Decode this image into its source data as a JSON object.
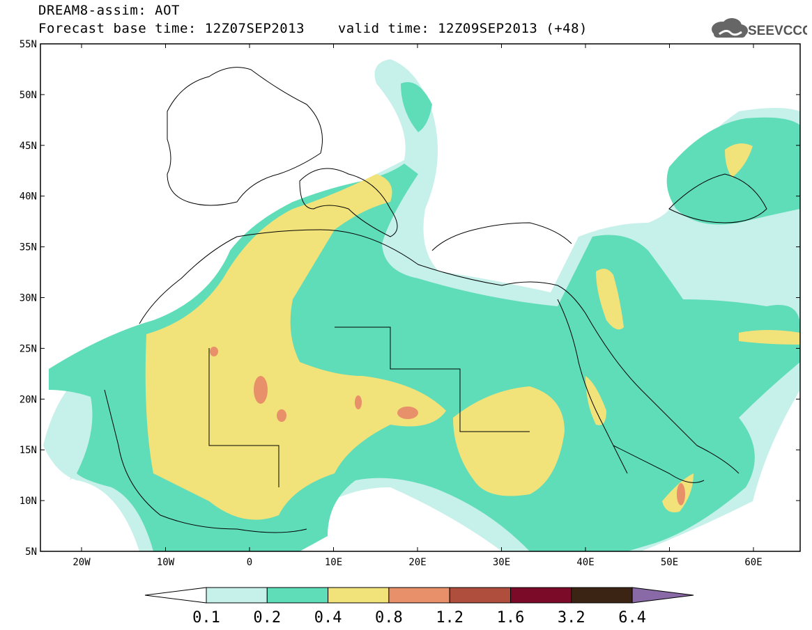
{
  "header": {
    "title_line1": "DREAM8-assim: AOT",
    "forecast_base": "Forecast base time: 12Z07SEP2013",
    "valid_time": "valid time: 12Z09SEP2013 (+48)"
  },
  "logo": {
    "text": "SEEVCCC",
    "icon": "cloud-logo-icon"
  },
  "map": {
    "lon_ticks": [
      "20W",
      "10W",
      "0",
      "10E",
      "20E",
      "30E",
      "40E",
      "50E",
      "60E"
    ],
    "lat_ticks": [
      "55N",
      "50N",
      "45N",
      "40N",
      "35N",
      "30N",
      "25N",
      "20N",
      "15N",
      "10N",
      "5N"
    ]
  },
  "legend": {
    "labels": [
      "0.1",
      "0.2",
      "0.4",
      "0.8",
      "1.2",
      "1.6",
      "3.2",
      "6.4"
    ],
    "colors": [
      "#c6f0ea",
      "#5fdcb8",
      "#f2e27a",
      "#e8906a",
      "#b04e3e",
      "#7a0a28",
      "#3c2414",
      "#8a6aa6"
    ]
  },
  "colors": {
    "aot_0_1": "#c6f0ea",
    "aot_0_2": "#5fdcb8",
    "aot_0_4": "#f2e27a",
    "aot_0_8": "#e8906a",
    "aot_1_2": "#b04e3e"
  }
}
